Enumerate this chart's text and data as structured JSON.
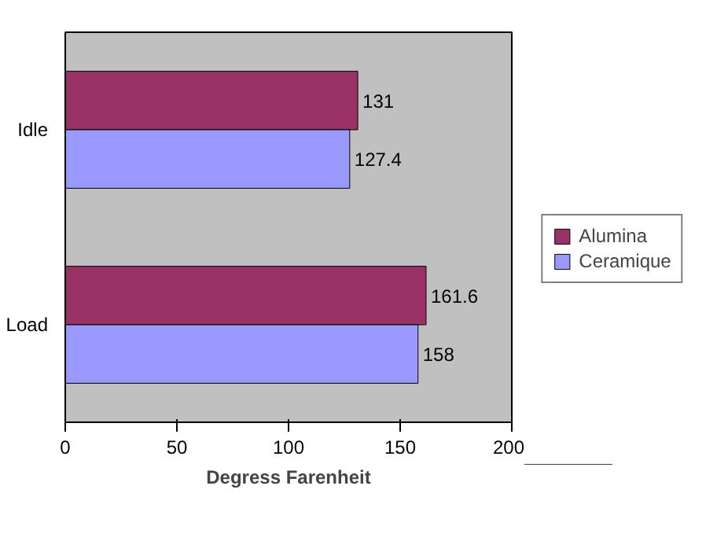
{
  "chart_data": {
    "type": "bar",
    "orientation": "horizontal",
    "categories": [
      "Idle",
      "Load"
    ],
    "series": [
      {
        "name": "Alumina",
        "color": "#993366",
        "values": [
          131,
          161.6
        ]
      },
      {
        "name": "Ceramique",
        "color": "#9999ff",
        "values": [
          127.4,
          158
        ]
      }
    ],
    "xlabel": "Degress Farenheit",
    "xlim": [
      0,
      200
    ],
    "xticks": [
      0,
      50,
      100,
      150,
      200
    ],
    "data_labels": true,
    "legend": "right",
    "grid": false
  }
}
